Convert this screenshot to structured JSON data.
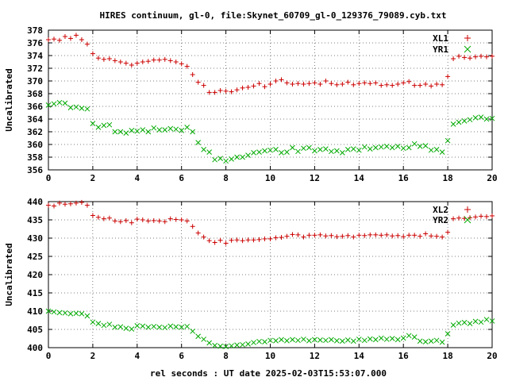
{
  "title": "HIRES continuum, gl-0, file:Skynet_60709_gl-0_129376_79089.cyb.txt",
  "xlabel": "rel seconds : UT date 2025-02-03T15:53:07.000",
  "colors": {
    "red": "#cc0000",
    "green": "#00aa00",
    "axes": "#000000",
    "grid": "#000000"
  },
  "chart_data": [
    {
      "type": "scatter",
      "ylabel": "Uncalibrated",
      "xlim": [
        0,
        20
      ],
      "ylim": [
        356,
        378
      ],
      "xticks": [
        0,
        2,
        4,
        6,
        8,
        10,
        12,
        14,
        16,
        18,
        20
      ],
      "yticks": [
        356,
        358,
        360,
        362,
        364,
        366,
        368,
        370,
        372,
        374,
        376,
        378
      ],
      "grid": true,
      "legend_position": "top-right",
      "series": [
        {
          "name": "XL1",
          "marker": "plus",
          "color": "#cc0000",
          "x": [
            0.0,
            0.25,
            0.5,
            0.75,
            1.0,
            1.25,
            1.5,
            1.75,
            2.0,
            2.25,
            2.5,
            2.75,
            3.0,
            3.25,
            3.5,
            3.75,
            4.0,
            4.25,
            4.5,
            4.75,
            5.0,
            5.25,
            5.5,
            5.75,
            6.0,
            6.25,
            6.5,
            6.75,
            7.0,
            7.25,
            7.5,
            7.75,
            8.0,
            8.25,
            8.5,
            8.75,
            9.0,
            9.25,
            9.5,
            9.75,
            10.0,
            10.25,
            10.5,
            10.75,
            11.0,
            11.25,
            11.5,
            11.75,
            12.0,
            12.25,
            12.5,
            12.75,
            13.0,
            13.25,
            13.5,
            13.75,
            14.0,
            14.25,
            14.5,
            14.75,
            15.0,
            15.25,
            15.5,
            15.75,
            16.0,
            16.25,
            16.5,
            16.75,
            17.0,
            17.25,
            17.5,
            17.75,
            18.0,
            18.25,
            18.5,
            18.75,
            19.0,
            19.25,
            19.5,
            19.75,
            20.0
          ],
          "y": [
            376.5,
            376.6,
            376.4,
            377.0,
            376.7,
            377.2,
            376.5,
            375.8,
            374.3,
            373.6,
            373.4,
            373.5,
            373.2,
            373.0,
            372.8,
            372.5,
            372.8,
            373.0,
            373.1,
            373.3,
            373.3,
            373.4,
            373.2,
            373.0,
            372.7,
            372.3,
            371.0,
            369.8,
            369.3,
            368.2,
            368.2,
            368.5,
            368.4,
            368.3,
            368.6,
            368.9,
            369.0,
            369.2,
            369.6,
            369.1,
            369.5,
            370.0,
            370.2,
            369.7,
            369.5,
            369.6,
            369.5,
            369.6,
            369.7,
            369.5,
            370.0,
            369.6,
            369.4,
            369.5,
            369.8,
            369.4,
            369.6,
            369.7,
            369.6,
            369.7,
            369.3,
            369.4,
            369.3,
            369.5,
            369.7,
            369.9,
            369.3,
            369.3,
            369.5,
            369.2,
            369.5,
            369.4,
            370.7,
            373.5,
            373.9,
            373.7,
            373.6,
            373.8,
            373.9,
            373.8,
            373.9
          ]
        },
        {
          "name": "YR1",
          "marker": "cross",
          "color": "#00aa00",
          "x": [
            0.0,
            0.25,
            0.5,
            0.75,
            1.0,
            1.25,
            1.5,
            1.75,
            2.0,
            2.25,
            2.5,
            2.75,
            3.0,
            3.25,
            3.5,
            3.75,
            4.0,
            4.25,
            4.5,
            4.75,
            5.0,
            5.25,
            5.5,
            5.75,
            6.0,
            6.25,
            6.5,
            6.75,
            7.0,
            7.25,
            7.5,
            7.75,
            8.0,
            8.25,
            8.5,
            8.75,
            9.0,
            9.25,
            9.5,
            9.75,
            10.0,
            10.25,
            10.5,
            10.75,
            11.0,
            11.25,
            11.5,
            11.75,
            12.0,
            12.25,
            12.5,
            12.75,
            13.0,
            13.25,
            13.5,
            13.75,
            14.0,
            14.25,
            14.5,
            14.75,
            15.0,
            15.25,
            15.5,
            15.75,
            16.0,
            16.25,
            16.5,
            16.75,
            17.0,
            17.25,
            17.5,
            17.75,
            18.0,
            18.25,
            18.5,
            18.75,
            19.0,
            19.25,
            19.5,
            19.75,
            20.0
          ],
          "y": [
            366.2,
            366.4,
            366.6,
            366.5,
            365.8,
            365.9,
            365.7,
            365.6,
            363.3,
            362.7,
            363.0,
            363.1,
            362.0,
            362.0,
            361.8,
            362.2,
            362.1,
            362.3,
            362.0,
            362.6,
            362.3,
            362.3,
            362.5,
            362.4,
            362.2,
            362.7,
            362.0,
            360.3,
            359.2,
            358.8,
            357.6,
            357.8,
            357.4,
            357.7,
            358.0,
            358.0,
            358.3,
            358.7,
            358.8,
            359.0,
            359.1,
            359.2,
            358.7,
            358.8,
            359.5,
            358.9,
            359.4,
            359.5,
            359.0,
            359.2,
            359.3,
            358.9,
            359.0,
            358.7,
            359.2,
            359.3,
            359.1,
            359.6,
            359.3,
            359.5,
            359.6,
            359.7,
            359.5,
            359.7,
            359.4,
            359.5,
            360.1,
            359.7,
            359.8,
            359.1,
            359.2,
            358.8,
            360.6,
            363.2,
            363.5,
            363.7,
            363.9,
            364.2,
            364.3,
            364.0,
            364.1
          ]
        }
      ]
    },
    {
      "type": "scatter",
      "ylabel": "Uncalibrated",
      "xlim": [
        0,
        20
      ],
      "ylim": [
        400,
        440
      ],
      "xticks": [
        0,
        2,
        4,
        6,
        8,
        10,
        12,
        14,
        16,
        18,
        20
      ],
      "yticks": [
        400,
        405,
        410,
        415,
        420,
        425,
        430,
        435,
        440
      ],
      "grid": true,
      "legend_position": "top-right",
      "series": [
        {
          "name": "XL2",
          "marker": "plus",
          "color": "#cc0000",
          "x": [
            0.0,
            0.25,
            0.5,
            0.75,
            1.0,
            1.25,
            1.5,
            1.75,
            2.0,
            2.25,
            2.5,
            2.75,
            3.0,
            3.25,
            3.5,
            3.75,
            4.0,
            4.25,
            4.5,
            4.75,
            5.0,
            5.25,
            5.5,
            5.75,
            6.0,
            6.25,
            6.5,
            6.75,
            7.0,
            7.25,
            7.5,
            7.75,
            8.0,
            8.25,
            8.5,
            8.75,
            9.0,
            9.25,
            9.5,
            9.75,
            10.0,
            10.25,
            10.5,
            10.75,
            11.0,
            11.25,
            11.5,
            11.75,
            12.0,
            12.25,
            12.5,
            12.75,
            13.0,
            13.25,
            13.5,
            13.75,
            14.0,
            14.25,
            14.5,
            14.75,
            15.0,
            15.25,
            15.5,
            15.75,
            16.0,
            16.25,
            16.5,
            16.75,
            17.0,
            17.25,
            17.5,
            17.75,
            18.0,
            18.25,
            18.5,
            18.75,
            19.0,
            19.25,
            19.5,
            19.75,
            20.0
          ],
          "y": [
            439.0,
            438.8,
            439.6,
            439.3,
            439.4,
            439.6,
            439.8,
            439.0,
            436.2,
            435.7,
            435.3,
            435.5,
            434.7,
            434.5,
            434.8,
            434.2,
            435.2,
            435.0,
            434.7,
            434.8,
            434.7,
            434.5,
            435.3,
            435.1,
            435.0,
            434.7,
            433.2,
            431.4,
            430.3,
            429.3,
            428.8,
            429.4,
            428.6,
            429.4,
            429.5,
            429.3,
            429.5,
            429.5,
            429.6,
            429.8,
            429.8,
            430.1,
            430.2,
            430.5,
            431.0,
            430.9,
            430.3,
            430.8,
            430.8,
            430.9,
            430.6,
            430.7,
            430.4,
            430.5,
            430.7,
            430.3,
            430.8,
            430.7,
            430.9,
            430.9,
            430.8,
            430.9,
            430.6,
            430.7,
            430.4,
            430.8,
            430.8,
            430.5,
            431.2,
            430.6,
            430.5,
            430.3,
            431.6,
            435.3,
            435.5,
            435.4,
            435.6,
            435.8,
            436.0,
            435.9,
            436.1
          ]
        },
        {
          "name": "YR2",
          "marker": "cross",
          "color": "#00aa00",
          "x": [
            0.0,
            0.25,
            0.5,
            0.75,
            1.0,
            1.25,
            1.5,
            1.75,
            2.0,
            2.25,
            2.5,
            2.75,
            3.0,
            3.25,
            3.5,
            3.75,
            4.0,
            4.25,
            4.5,
            4.75,
            5.0,
            5.25,
            5.5,
            5.75,
            6.0,
            6.25,
            6.5,
            6.75,
            7.0,
            7.25,
            7.5,
            7.75,
            8.0,
            8.25,
            8.5,
            8.75,
            9.0,
            9.25,
            9.5,
            9.75,
            10.0,
            10.25,
            10.5,
            10.75,
            11.0,
            11.25,
            11.5,
            11.75,
            12.0,
            12.25,
            12.5,
            12.75,
            13.0,
            13.25,
            13.5,
            13.75,
            14.0,
            14.25,
            14.5,
            14.75,
            15.0,
            15.25,
            15.5,
            15.75,
            16.0,
            16.25,
            16.5,
            16.75,
            17.0,
            17.25,
            17.5,
            17.75,
            18.0,
            18.25,
            18.5,
            18.75,
            19.0,
            19.25,
            19.5,
            19.75,
            20.0
          ],
          "y": [
            410.0,
            409.8,
            409.6,
            409.5,
            409.3,
            409.4,
            409.3,
            408.7,
            407.0,
            406.6,
            406.1,
            406.4,
            405.6,
            405.7,
            405.3,
            405.1,
            406.0,
            405.9,
            405.6,
            405.8,
            405.6,
            405.5,
            405.9,
            405.7,
            405.6,
            405.8,
            404.5,
            403.1,
            402.3,
            401.3,
            400.6,
            400.4,
            400.3,
            400.5,
            400.7,
            400.8,
            401.0,
            401.4,
            401.7,
            401.6,
            402.0,
            401.9,
            402.2,
            401.9,
            402.2,
            402.0,
            402.3,
            401.9,
            402.2,
            402.1,
            402.0,
            402.2,
            401.9,
            401.8,
            402.1,
            401.8,
            402.3,
            402.0,
            402.4,
            402.2,
            402.6,
            402.3,
            402.5,
            402.2,
            402.6,
            403.3,
            402.9,
            401.8,
            401.6,
            401.8,
            402.0,
            401.5,
            403.8,
            406.2,
            406.7,
            406.9,
            406.6,
            407.2,
            407.0,
            407.7,
            407.3
          ]
        }
      ]
    }
  ]
}
